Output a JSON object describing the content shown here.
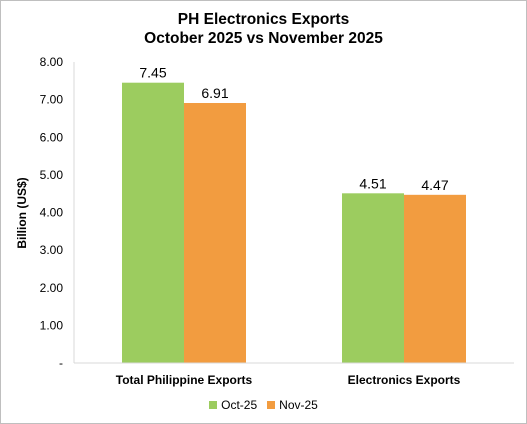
{
  "chart_data": {
    "type": "bar",
    "title": [
      "PH Electronics Exports",
      "October 2025 vs November 2025"
    ],
    "ylabel": "Billion (US$)",
    "xlabel": "",
    "categories": [
      "Total Philippine Exports",
      "Electronics Exports"
    ],
    "series": [
      {
        "name": "Oct-25",
        "values": [
          7.45,
          4.51
        ],
        "color": "#9ccc5f",
        "labels": [
          "7.45",
          "4.51"
        ]
      },
      {
        "name": "Nov-25",
        "values": [
          6.91,
          4.47
        ],
        "color": "#f29c40",
        "labels": [
          "6.91",
          "4.47"
        ]
      }
    ],
    "ylim": [
      0,
      8
    ],
    "yticks": [
      {
        "value": 0,
        "label": "-"
      },
      {
        "value": 1,
        "label": "1.00"
      },
      {
        "value": 2,
        "label": "2.00"
      },
      {
        "value": 3,
        "label": "3.00"
      },
      {
        "value": 4,
        "label": "4.00"
      },
      {
        "value": 5,
        "label": "5.00"
      },
      {
        "value": 6,
        "label": "6.00"
      },
      {
        "value": 7,
        "label": "7.00"
      },
      {
        "value": 8,
        "label": "8.00"
      }
    ],
    "grid": false,
    "legend_position": "bottom"
  }
}
